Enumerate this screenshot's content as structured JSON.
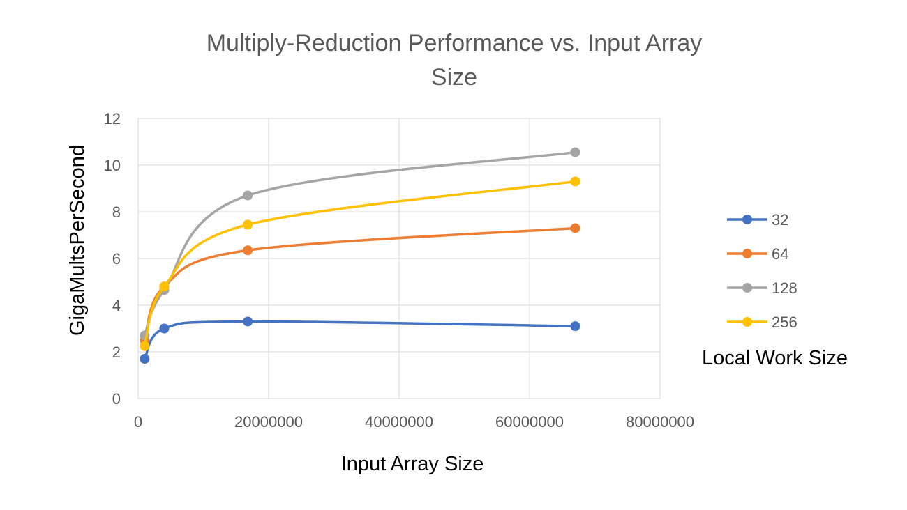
{
  "chart_data": {
    "type": "line",
    "title_lines": [
      "Multiply-Reduction Performance vs. Input Array",
      "Size"
    ],
    "xlabel": "Input Array Size",
    "ylabel": "GigaMultsPerSecond",
    "legend_title": "Local Work Size",
    "legend_position": "right",
    "grid": true,
    "xlim": [
      0,
      80000000
    ],
    "ylim": [
      0,
      12
    ],
    "x_ticks": [
      "0",
      "20000000",
      "40000000",
      "60000000",
      "80000000"
    ],
    "y_ticks": [
      "0",
      "2",
      "4",
      "6",
      "8",
      "10",
      "12"
    ],
    "x": [
      1000000,
      4000000,
      16800000,
      67000000
    ],
    "series": [
      {
        "name": "32",
        "color": "#4472C4",
        "values": [
          1.7,
          3.0,
          3.3,
          3.1
        ]
      },
      {
        "name": "64",
        "color": "#ED7D31",
        "values": [
          2.5,
          4.8,
          6.35,
          7.3
        ]
      },
      {
        "name": "128",
        "color": "#A5A5A5",
        "values": [
          2.7,
          4.65,
          8.7,
          10.55
        ]
      },
      {
        "name": "256",
        "color": "#FFC000",
        "values": [
          2.25,
          4.8,
          7.45,
          9.3
        ]
      }
    ]
  }
}
